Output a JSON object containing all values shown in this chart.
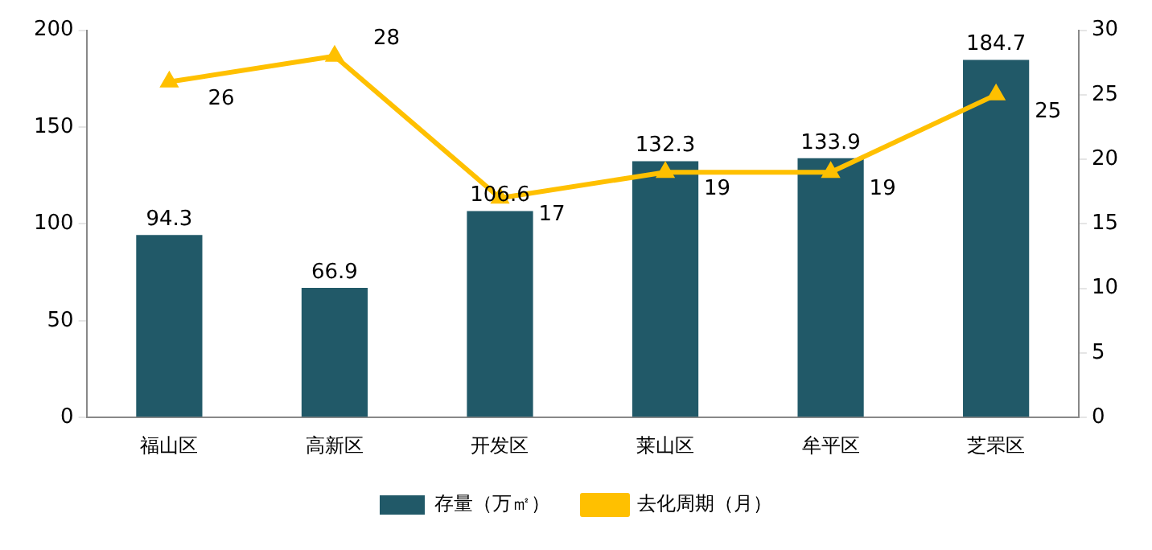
{
  "chart_data": {
    "type": "bar",
    "categories": [
      "福山区",
      "高新区",
      "开发区",
      "莱山区",
      "牟平区",
      "芝罘区"
    ],
    "series": [
      {
        "name": "存量（万㎡）",
        "color": "#215968",
        "values": [
          94.3,
          66.9,
          106.6,
          132.3,
          133.9,
          184.7
        ]
      },
      {
        "name": "去化周期（月）",
        "type": "line",
        "axis": "y2",
        "color": "#ffc000",
        "values": [
          26,
          28,
          17,
          19,
          19,
          25
        ]
      }
    ],
    "ylim": [
      0,
      200
    ],
    "yticks": [
      0,
      50,
      100,
      150,
      200
    ],
    "y2lim": [
      0,
      30
    ],
    "y2ticks": [
      0,
      5,
      10,
      15,
      20,
      25,
      30
    ],
    "grid": false,
    "legend": "bottom",
    "marker": "triangle",
    "line_style": "solid",
    "data_labels": true
  }
}
